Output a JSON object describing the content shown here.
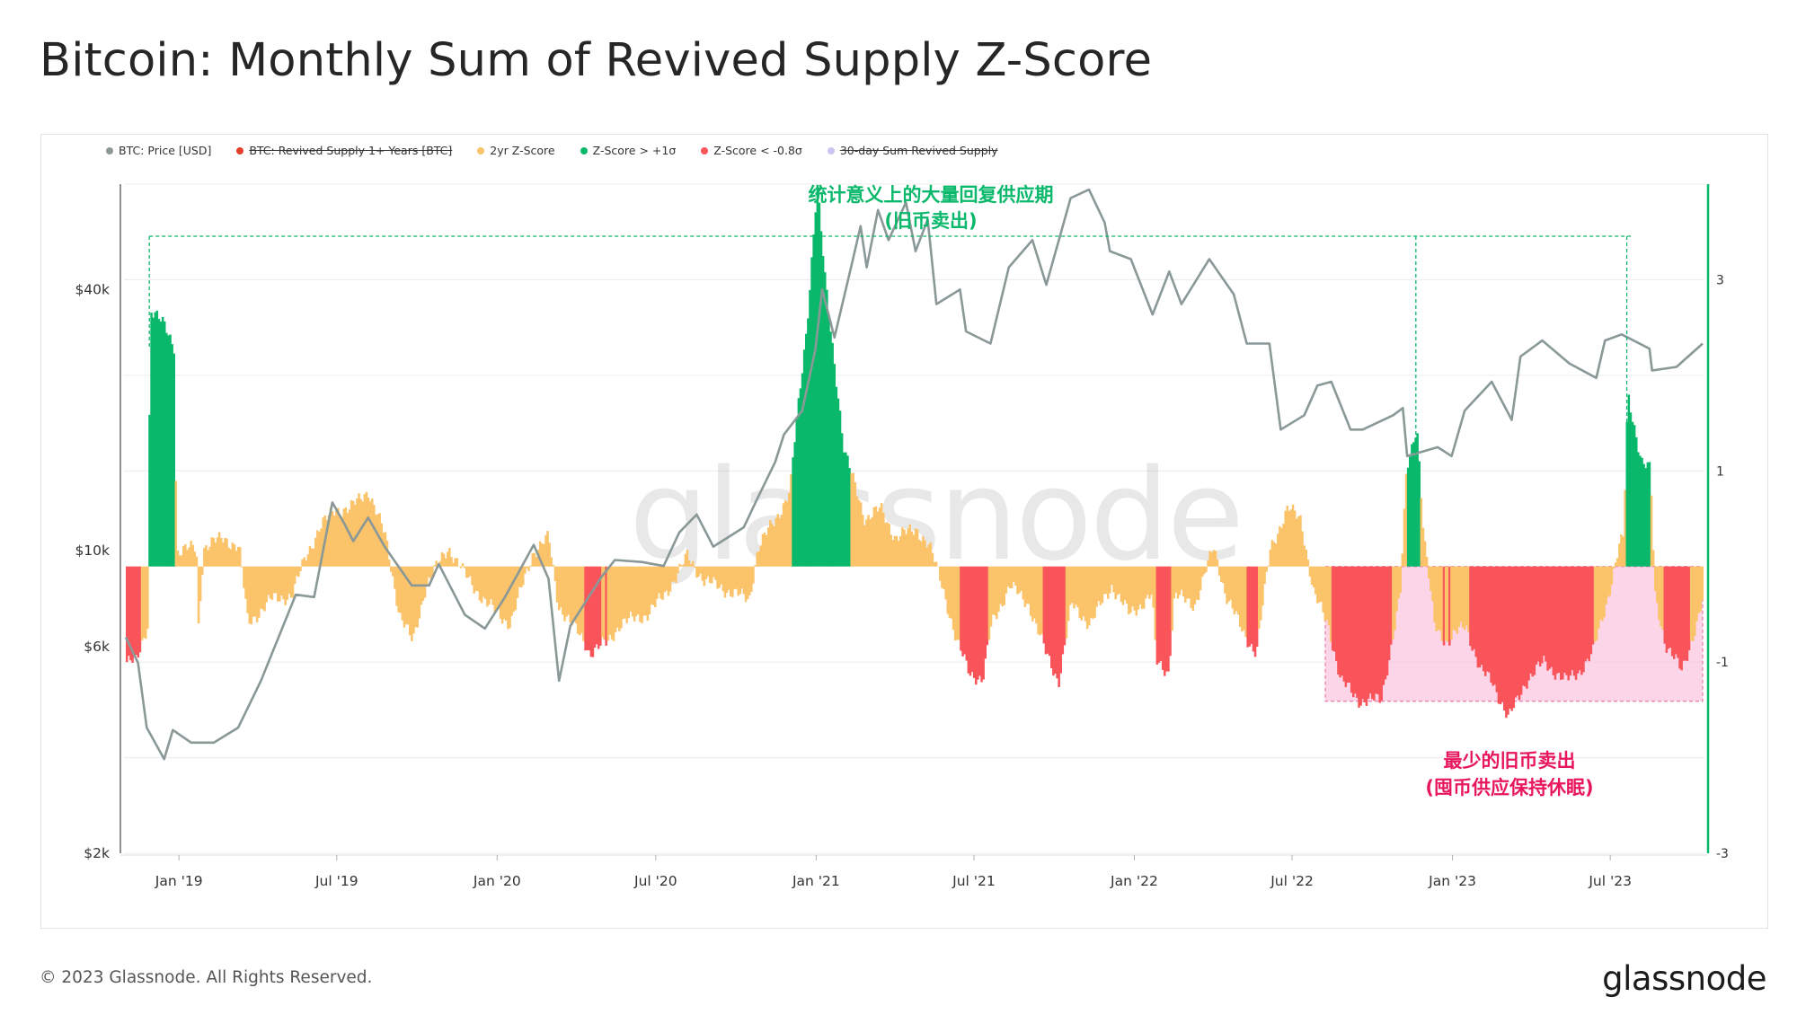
{
  "title": "Bitcoin: Monthly Sum of Revived Supply Z-Score",
  "copyright": "© 2023 Glassnode. All Rights Reserved.",
  "brand": "glassnode",
  "watermark": "glassnode",
  "legend": [
    {
      "label": "BTC: Price [USD]",
      "color": "#8a9898",
      "struck": false
    },
    {
      "label": "BTC: Revived Supply 1+ Years [BTC]",
      "color": "#e53e2a",
      "struck": true
    },
    {
      "label": "2yr Z-Score",
      "color": "#fbc36a",
      "struck": false
    },
    {
      "label": "Z-Score > +1σ",
      "color": "#0ab86b",
      "struck": false
    },
    {
      "label": "Z-Score < -0.8σ",
      "color": "#f8545a",
      "struck": false
    },
    {
      "label": "30-day Sum Revived Supply",
      "color": "#c8c5f0",
      "struck": true
    }
  ],
  "annotations": {
    "top_line1": "统计意义上的大量回复供应期",
    "top_line2": "(旧币卖出)",
    "top_color": "#0ab86b",
    "bottom_line1": "最少的旧币卖出",
    "bottom_line2": "(囤币供应保持休眠)",
    "bottom_color": "#e8175d"
  },
  "chart_data": {
    "type": "line+bar",
    "x_range": [
      "2018-11-01",
      "2023-10-15"
    ],
    "x_ticks": [
      "Jan '19",
      "Jul '19",
      "Jan '20",
      "Jul '20",
      "Jan '21",
      "Jul '21",
      "Jan '22",
      "Jul '22",
      "Jan '23",
      "Jul '23"
    ],
    "x_tick_dates": [
      "2019-01-01",
      "2019-07-01",
      "2020-01-01",
      "2020-07-01",
      "2021-01-01",
      "2021-07-01",
      "2022-01-01",
      "2022-07-01",
      "2023-01-01",
      "2023-07-01"
    ],
    "y_left": {
      "scale": "log",
      "range": [
        2000,
        70000
      ],
      "ticks": [
        "$2k",
        "$6k",
        "$10k",
        "$40k"
      ],
      "tick_values": [
        2000,
        6000,
        10000,
        40000
      ]
    },
    "y_right": {
      "scale": "linear",
      "range": [
        -3,
        4
      ],
      "ticks": [
        "3",
        "1",
        "-1",
        "-3"
      ],
      "tick_values": [
        3,
        1,
        -1,
        -3
      ]
    },
    "thresholds": {
      "upper": 1,
      "lower": -0.8
    },
    "price": [
      [
        "2018-11-01",
        6300
      ],
      [
        "2018-11-15",
        5500
      ],
      [
        "2018-11-25",
        3900
      ],
      [
        "2018-12-15",
        3300
      ],
      [
        "2018-12-25",
        3850
      ],
      [
        "2019-01-15",
        3600
      ],
      [
        "2019-02-10",
        3600
      ],
      [
        "2019-03-10",
        3900
      ],
      [
        "2019-04-05",
        5000
      ],
      [
        "2019-05-15",
        7900
      ],
      [
        "2019-06-05",
        7800
      ],
      [
        "2019-06-26",
        12900
      ],
      [
        "2019-07-10",
        11500
      ],
      [
        "2019-07-20",
        10500
      ],
      [
        "2019-08-06",
        11900
      ],
      [
        "2019-08-25",
        10200
      ],
      [
        "2019-09-25",
        8300
      ],
      [
        "2019-10-15",
        8300
      ],
      [
        "2019-10-26",
        9300
      ],
      [
        "2019-11-25",
        7100
      ],
      [
        "2019-12-18",
        6600
      ],
      [
        "2020-01-10",
        7800
      ],
      [
        "2020-02-12",
        10300
      ],
      [
        "2020-02-29",
        8600
      ],
      [
        "2020-03-12",
        5000
      ],
      [
        "2020-03-25",
        6700
      ],
      [
        "2020-04-30",
        8700
      ],
      [
        "2020-05-15",
        9500
      ],
      [
        "2020-06-15",
        9400
      ],
      [
        "2020-07-10",
        9200
      ],
      [
        "2020-07-28",
        11000
      ],
      [
        "2020-08-17",
        12100
      ],
      [
        "2020-09-05",
        10200
      ],
      [
        "2020-10-10",
        11300
      ],
      [
        "2020-10-25",
        13100
      ],
      [
        "2020-11-15",
        16000
      ],
      [
        "2020-11-25",
        18500
      ],
      [
        "2020-12-16",
        21000
      ],
      [
        "2020-12-31",
        29000
      ],
      [
        "2021-01-08",
        40000
      ],
      [
        "2021-01-22",
        31000
      ],
      [
        "2021-02-10",
        45000
      ],
      [
        "2021-02-21",
        56000
      ],
      [
        "2021-02-28",
        45000
      ],
      [
        "2021-03-13",
        61000
      ],
      [
        "2021-03-25",
        52000
      ],
      [
        "2021-04-14",
        63500
      ],
      [
        "2021-04-25",
        49000
      ],
      [
        "2021-05-09",
        58000
      ],
      [
        "2021-05-19",
        37000
      ],
      [
        "2021-06-15",
        40000
      ],
      [
        "2021-06-22",
        32000
      ],
      [
        "2021-07-20",
        30000
      ],
      [
        "2021-08-10",
        45000
      ],
      [
        "2021-09-06",
        52000
      ],
      [
        "2021-09-22",
        41000
      ],
      [
        "2021-10-20",
        65000
      ],
      [
        "2021-11-10",
        68000
      ],
      [
        "2021-11-28",
        57000
      ],
      [
        "2021-12-04",
        49000
      ],
      [
        "2021-12-28",
        47000
      ],
      [
        "2022-01-22",
        35000
      ],
      [
        "2022-02-10",
        44000
      ],
      [
        "2022-02-24",
        37000
      ],
      [
        "2022-03-28",
        47000
      ],
      [
        "2022-04-25",
        39000
      ],
      [
        "2022-05-10",
        30000
      ],
      [
        "2022-06-05",
        30000
      ],
      [
        "2022-06-18",
        19000
      ],
      [
        "2022-07-15",
        20500
      ],
      [
        "2022-07-30",
        24000
      ],
      [
        "2022-08-15",
        24500
      ],
      [
        "2022-09-06",
        19000
      ],
      [
        "2022-09-20",
        19000
      ],
      [
        "2022-10-25",
        20500
      ],
      [
        "2022-11-05",
        21300
      ],
      [
        "2022-11-10",
        16500
      ],
      [
        "2022-12-15",
        17300
      ],
      [
        "2022-12-31",
        16500
      ],
      [
        "2023-01-15",
        21000
      ],
      [
        "2023-02-15",
        24500
      ],
      [
        "2023-03-10",
        20000
      ],
      [
        "2023-03-20",
        28000
      ],
      [
        "2023-04-14",
        30500
      ],
      [
        "2023-05-15",
        27000
      ],
      [
        "2023-06-15",
        25000
      ],
      [
        "2023-06-25",
        30500
      ],
      [
        "2023-07-14",
        31500
      ],
      [
        "2023-08-15",
        29200
      ],
      [
        "2023-08-18",
        26000
      ],
      [
        "2023-09-15",
        26500
      ],
      [
        "2023-10-15",
        30000
      ]
    ],
    "zscore": [
      [
        "2018-11-01",
        -1.0
      ],
      [
        "2018-11-12",
        -1.0
      ],
      [
        "2018-11-25",
        -0.6
      ],
      [
        "2018-11-28",
        2.7
      ],
      [
        "2018-12-15",
        2.5
      ],
      [
        "2018-12-26",
        2.3
      ],
      [
        "2018-12-28",
        0.15
      ],
      [
        "2019-01-20",
        0.2
      ],
      [
        "2019-01-21",
        -0.8
      ],
      [
        "2019-01-28",
        0.2
      ],
      [
        "2019-02-20",
        0.3
      ],
      [
        "2019-03-10",
        0.2
      ],
      [
        "2019-03-20",
        -0.6
      ],
      [
        "2019-04-15",
        -0.35
      ],
      [
        "2019-05-10",
        -0.3
      ],
      [
        "2019-05-25",
        0.1
      ],
      [
        "2019-06-10",
        0.4
      ],
      [
        "2019-06-28",
        0.6
      ],
      [
        "2019-07-15",
        0.6
      ],
      [
        "2019-08-05",
        0.8
      ],
      [
        "2019-08-25",
        0.3
      ],
      [
        "2019-09-10",
        -0.5
      ],
      [
        "2019-09-25",
        -0.8
      ],
      [
        "2019-10-10",
        -0.2
      ],
      [
        "2019-11-05",
        0.2
      ],
      [
        "2019-11-25",
        -0.1
      ],
      [
        "2019-12-20",
        -0.4
      ],
      [
        "2020-01-15",
        -0.6
      ],
      [
        "2020-02-10",
        0.15
      ],
      [
        "2020-02-28",
        0.3
      ],
      [
        "2020-03-10",
        -0.4
      ],
      [
        "2020-03-25",
        -0.6
      ],
      [
        "2020-04-10",
        -0.8
      ],
      [
        "2020-04-15",
        -0.9
      ],
      [
        "2020-05-05",
        -0.8
      ],
      [
        "2020-05-20",
        -0.6
      ],
      [
        "2020-06-20",
        -0.5
      ],
      [
        "2020-07-10",
        -0.3
      ],
      [
        "2020-08-05",
        0.1
      ],
      [
        "2020-08-25",
        -0.15
      ],
      [
        "2020-09-20",
        -0.25
      ],
      [
        "2020-10-15",
        -0.35
      ],
      [
        "2020-10-25",
        0.2
      ],
      [
        "2020-11-15",
        0.5
      ],
      [
        "2020-12-01",
        0.8
      ],
      [
        "2020-12-05",
        1.2
      ],
      [
        "2020-12-20",
        2.5
      ],
      [
        "2021-01-01",
        4.0
      ],
      [
        "2021-01-10",
        3.0
      ],
      [
        "2021-01-25",
        1.8
      ],
      [
        "2021-02-01",
        1.2
      ],
      [
        "2021-02-15",
        0.8
      ],
      [
        "2021-02-25",
        0.5
      ],
      [
        "2021-03-15",
        0.6
      ],
      [
        "2021-04-01",
        0.3
      ],
      [
        "2021-04-25",
        0.4
      ],
      [
        "2021-05-10",
        0.2
      ],
      [
        "2021-05-25",
        -0.2
      ],
      [
        "2021-06-10",
        -0.8
      ],
      [
        "2021-06-25",
        -1.1
      ],
      [
        "2021-07-10",
        -1.2
      ],
      [
        "2021-07-20",
        -0.6
      ],
      [
        "2021-08-10",
        -0.2
      ],
      [
        "2021-09-01",
        -0.4
      ],
      [
        "2021-09-20",
        -0.9
      ],
      [
        "2021-10-05",
        -1.2
      ],
      [
        "2021-10-20",
        -0.4
      ],
      [
        "2021-11-10",
        -0.6
      ],
      [
        "2021-12-05",
        -0.2
      ],
      [
        "2021-12-25",
        -0.5
      ],
      [
        "2022-01-20",
        -0.3
      ],
      [
        "2022-01-25",
        -1.0
      ],
      [
        "2022-02-08",
        -1.1
      ],
      [
        "2022-02-15",
        -0.3
      ],
      [
        "2022-03-10",
        -0.4
      ],
      [
        "2022-04-01",
        0.2
      ],
      [
        "2022-04-15",
        -0.3
      ],
      [
        "2022-05-05",
        -0.7
      ],
      [
        "2022-05-20",
        -0.9
      ],
      [
        "2022-06-05",
        0.2
      ],
      [
        "2022-06-25",
        0.6
      ],
      [
        "2022-07-10",
        0.5
      ],
      [
        "2022-07-25",
        -0.3
      ],
      [
        "2022-08-10",
        -0.6
      ],
      [
        "2022-08-25",
        -1.2
      ],
      [
        "2022-09-15",
        -1.4
      ],
      [
        "2022-10-10",
        -1.4
      ],
      [
        "2022-11-01",
        -0.3
      ],
      [
        "2022-11-08",
        1.0
      ],
      [
        "2022-11-20",
        1.5
      ],
      [
        "2022-11-28",
        0.3
      ],
      [
        "2022-12-10",
        -0.6
      ],
      [
        "2022-12-25",
        -0.8
      ],
      [
        "2023-01-15",
        -0.6
      ],
      [
        "2023-02-01",
        -1.1
      ],
      [
        "2023-02-15",
        -1.2
      ],
      [
        "2023-03-05",
        -1.6
      ],
      [
        "2023-03-25",
        -1.2
      ],
      [
        "2023-04-15",
        -1.0
      ],
      [
        "2023-05-10",
        -1.2
      ],
      [
        "2023-05-25",
        -1.1
      ],
      [
        "2023-06-10",
        -0.9
      ],
      [
        "2023-06-25",
        -0.4
      ],
      [
        "2023-07-10",
        0.2
      ],
      [
        "2023-07-15",
        0.3
      ],
      [
        "2023-07-20",
        1.8
      ],
      [
        "2023-08-05",
        1.1
      ],
      [
        "2023-08-15",
        1.0
      ],
      [
        "2023-08-20",
        -0.3
      ],
      [
        "2023-09-01",
        -0.8
      ],
      [
        "2023-09-20",
        -1.1
      ],
      [
        "2023-10-10",
        -0.5
      ],
      [
        "2023-10-15",
        -0.3
      ]
    ]
  }
}
